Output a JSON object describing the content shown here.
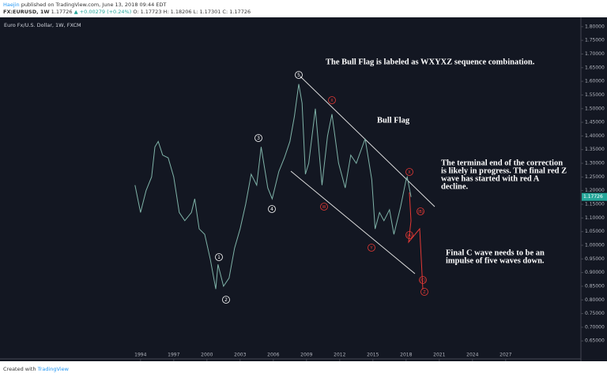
{
  "header": {
    "author": "Haejin",
    "published": "published on TradingView.com, June 13, 2018 09:44 EDT",
    "symbol": "FX:EURUSD, 1W",
    "last": "1.17726",
    "change": "▲ +0.00279 (+0.24%)",
    "ohlc": "O: 1.17723 H: 1.18206 L: 1.17301 C: 1.17726"
  },
  "chart_data": {
    "type": "line",
    "title": "Euro Fx/U.S. Dollar, 1W, FXCM",
    "color": "#7fb3a8",
    "x": [
      1993.5,
      1994.0,
      1994.5,
      1995.0,
      1995.3,
      1995.6,
      1996.0,
      1996.5,
      1997.0,
      1997.5,
      1998.0,
      1998.6,
      1998.9,
      1999.3,
      1999.8,
      2000.3,
      2000.8,
      2001.0,
      2001.5,
      2002.0,
      2002.5,
      2003.0,
      2003.5,
      2004.0,
      2004.5,
      2004.9,
      2005.5,
      2005.9,
      2006.5,
      2007.0,
      2007.5,
      2007.9,
      2008.3,
      2008.6,
      2008.9,
      2009.2,
      2009.8,
      2010.4,
      2010.9,
      2011.3,
      2011.9,
      2012.5,
      2013.0,
      2013.5,
      2014.3,
      2014.9,
      2015.2,
      2015.6,
      2016.0,
      2016.5,
      2016.9,
      2017.5,
      2018.0,
      2018.1,
      2018.45
    ],
    "values": [
      1.22,
      1.12,
      1.2,
      1.25,
      1.36,
      1.38,
      1.33,
      1.32,
      1.25,
      1.12,
      1.09,
      1.12,
      1.17,
      1.06,
      1.04,
      0.95,
      0.84,
      0.93,
      0.85,
      0.88,
      0.99,
      1.06,
      1.15,
      1.26,
      1.22,
      1.36,
      1.21,
      1.17,
      1.27,
      1.32,
      1.38,
      1.47,
      1.59,
      1.52,
      1.26,
      1.3,
      1.5,
      1.22,
      1.4,
      1.48,
      1.3,
      1.21,
      1.33,
      1.3,
      1.39,
      1.24,
      1.06,
      1.12,
      1.09,
      1.13,
      1.04,
      1.14,
      1.24,
      1.25,
      1.177
    ],
    "last_label": "1.17726",
    "xlim": [
      1981.3,
      2033.8
    ],
    "xticks": [
      1994,
      1997,
      2000,
      2003,
      2006,
      2009,
      2012,
      2015,
      2018,
      2021,
      2024,
      2027
    ],
    "ylim": [
      0.6276,
      1.8168
    ],
    "yticks": [
      {
        "value": 0.65,
        "label": "0.65000"
      },
      {
        "value": 0.7,
        "label": "0.70000"
      },
      {
        "value": 0.75,
        "label": "0.75000"
      },
      {
        "value": 0.8,
        "label": "0.80000"
      },
      {
        "value": 0.85,
        "label": "0.85000"
      },
      {
        "value": 0.9,
        "label": "0.90000"
      },
      {
        "value": 0.95,
        "label": "0.95000"
      },
      {
        "value": 1.0,
        "label": "1.00000"
      },
      {
        "value": 1.05,
        "label": "1.05000"
      },
      {
        "value": 1.1,
        "label": "1.10000"
      },
      {
        "value": 1.15,
        "label": "1.15000"
      },
      {
        "value": 1.2,
        "label": "1.20000"
      },
      {
        "value": 1.25,
        "label": "1.25000"
      },
      {
        "value": 1.3,
        "label": "1.30000"
      },
      {
        "value": 1.35,
        "label": "1.35000"
      },
      {
        "value": 1.4,
        "label": "1.40000"
      },
      {
        "value": 1.45,
        "label": "1.45000"
      },
      {
        "value": 1.5,
        "label": "1.50000"
      },
      {
        "value": 1.55,
        "label": "1.55000"
      },
      {
        "value": 1.6,
        "label": "1.60000"
      },
      {
        "value": 1.65,
        "label": "1.65000"
      },
      {
        "value": 1.7,
        "label": "1.70000"
      },
      {
        "value": 1.75,
        "label": "1.75000"
      },
      {
        "value": 1.8,
        "label": "1.80000"
      }
    ],
    "annotations": [
      "The Bull Flag is labeled as WXYXZ sequence combination.",
      "Bull Flag"
    ],
    "note1": [
      "The terminal end of the correction",
      "is likely in progress. The final red Z",
      "wave has started with red A",
      "decline."
    ],
    "note2": [
      "Final C wave needs to be an",
      "impulse of five waves down."
    ],
    "waves_white": [
      "5",
      "3",
      "4",
      "1",
      "2"
    ],
    "waves_red": [
      "W",
      "X",
      "Y",
      "X",
      "Z",
      "(A)",
      "(B)",
      "(C)"
    ]
  },
  "footer": {
    "created": "Created with",
    "brand": "TradingView"
  }
}
